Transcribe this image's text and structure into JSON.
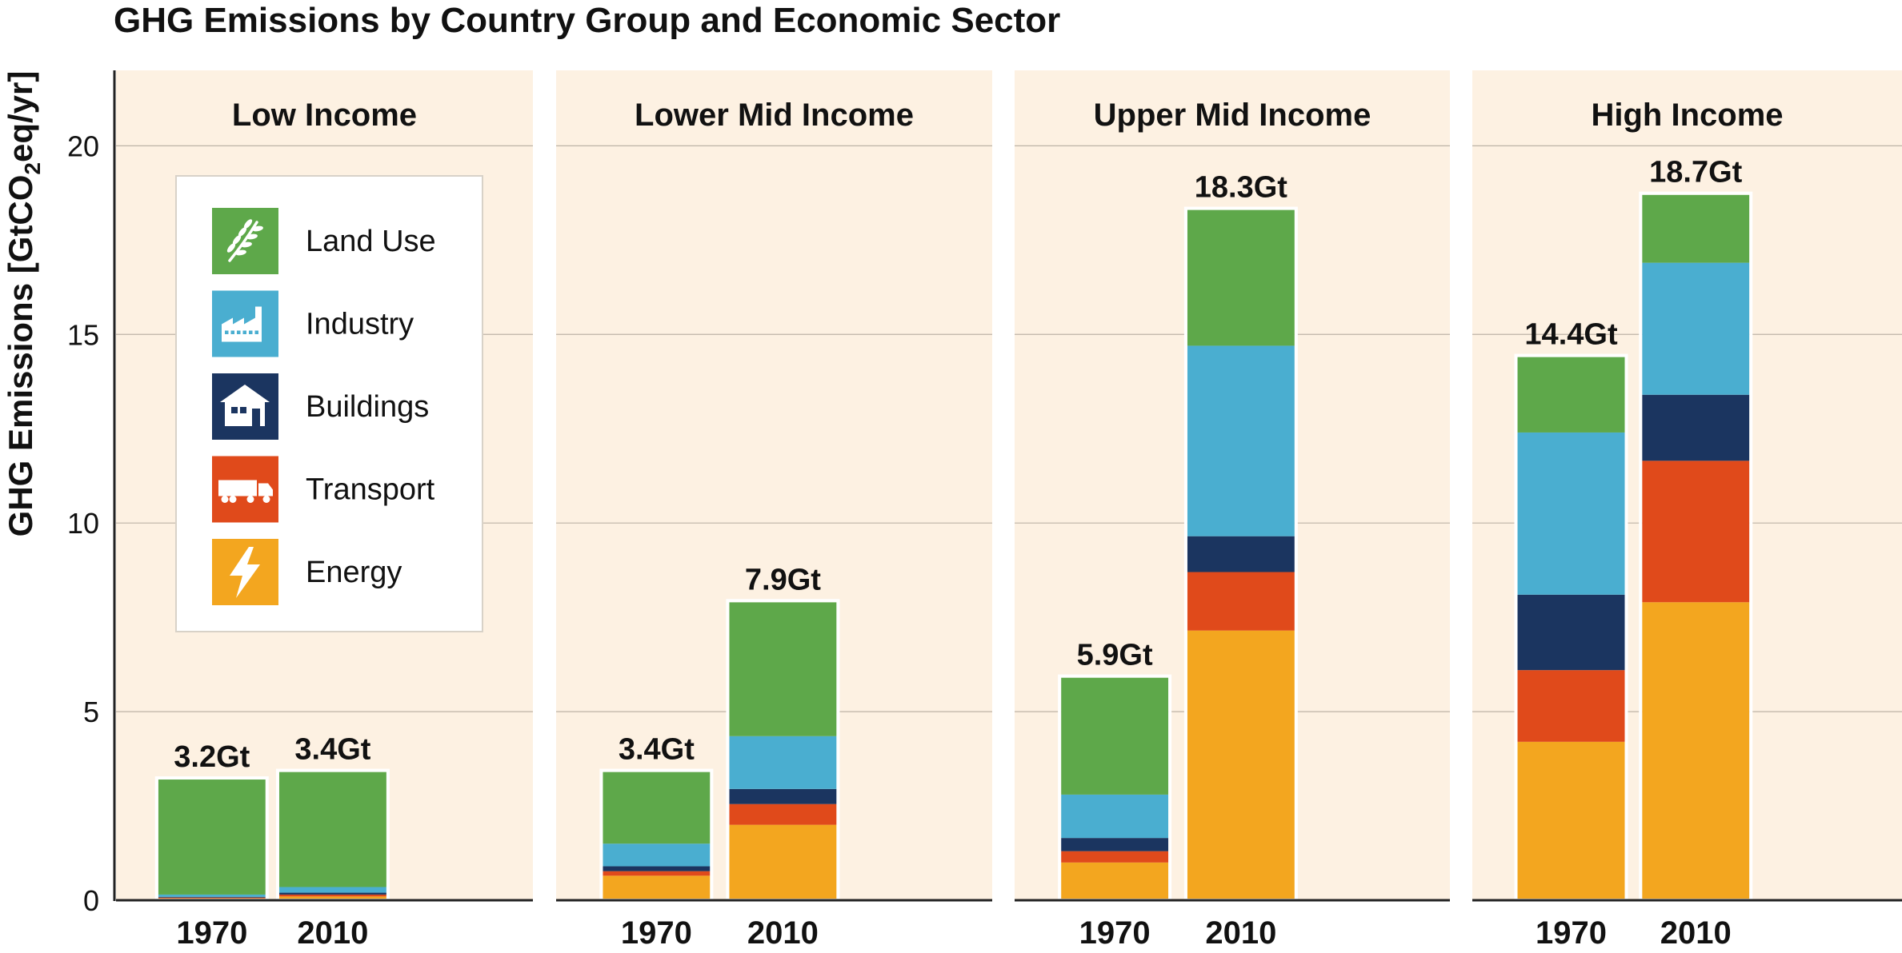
{
  "chart_data": {
    "type": "bar",
    "stacked": true,
    "title": "GHG Emissions by Country Group and Economic Sector",
    "ylabel": "GHG Emissions [GtCO2eq/yr]",
    "ylabel_parts": {
      "before": "GHG Emissions [GtCO",
      "subscript": "2",
      "after": "eq/yr]"
    },
    "ylim": [
      0,
      22
    ],
    "yticks": [
      0,
      5,
      10,
      15,
      20
    ],
    "grid": true,
    "legend_position": "top-left of first panel",
    "sectors": [
      {
        "name": "Land Use",
        "color": "#5ea84a",
        "icon": "wheat-icon"
      },
      {
        "name": "Industry",
        "color": "#4aaed0",
        "icon": "factory-icon"
      },
      {
        "name": "Buildings",
        "color": "#1b3560",
        "icon": "house-icon"
      },
      {
        "name": "Transport",
        "color": "#e04a1b",
        "icon": "truck-icon"
      },
      {
        "name": "Energy",
        "color": "#f3a61f",
        "icon": "lightning-icon"
      }
    ],
    "stack_order": [
      "Energy",
      "Transport",
      "Buildings",
      "Industry",
      "Land Use"
    ],
    "panels": [
      {
        "name": "Low Income",
        "categories": [
          "1970",
          "2010"
        ],
        "totals": [
          "3.2Gt",
          "3.4Gt"
        ],
        "series": [
          {
            "name": "Energy",
            "values": [
              0.05,
              0.1
            ]
          },
          {
            "name": "Transport",
            "values": [
              0.02,
              0.05
            ]
          },
          {
            "name": "Buildings",
            "values": [
              0.02,
              0.05
            ]
          },
          {
            "name": "Industry",
            "values": [
              0.06,
              0.15
            ]
          },
          {
            "name": "Land Use",
            "values": [
              3.05,
              3.05
            ]
          }
        ]
      },
      {
        "name": "Lower Mid Income",
        "categories": [
          "1970",
          "2010"
        ],
        "totals": [
          "3.4Gt",
          "7.9Gt"
        ],
        "series": [
          {
            "name": "Energy",
            "values": [
              0.65,
              2.0
            ]
          },
          {
            "name": "Transport",
            "values": [
              0.12,
              0.55
            ]
          },
          {
            "name": "Buildings",
            "values": [
              0.13,
              0.4
            ]
          },
          {
            "name": "Industry",
            "values": [
              0.6,
              1.4
            ]
          },
          {
            "name": "Land Use",
            "values": [
              1.9,
              3.55
            ]
          }
        ]
      },
      {
        "name": "Upper Mid Income",
        "categories": [
          "1970",
          "2010"
        ],
        "totals": [
          "5.9Gt",
          "18.3Gt"
        ],
        "series": [
          {
            "name": "Energy",
            "values": [
              1.0,
              7.15
            ]
          },
          {
            "name": "Transport",
            "values": [
              0.3,
              1.55
            ]
          },
          {
            "name": "Buildings",
            "values": [
              0.35,
              0.95
            ]
          },
          {
            "name": "Industry",
            "values": [
              1.15,
              5.05
            ]
          },
          {
            "name": "Land Use",
            "values": [
              3.1,
              3.6
            ]
          }
        ]
      },
      {
        "name": "High Income",
        "categories": [
          "1970",
          "2010"
        ],
        "totals": [
          "14.4Gt",
          "18.7Gt"
        ],
        "series": [
          {
            "name": "Energy",
            "values": [
              4.2,
              7.9
            ]
          },
          {
            "name": "Transport",
            "values": [
              1.9,
              3.75
            ]
          },
          {
            "name": "Buildings",
            "values": [
              2.0,
              1.75
            ]
          },
          {
            "name": "Industry",
            "values": [
              4.3,
              3.5
            ]
          },
          {
            "name": "Land Use",
            "values": [
              2.0,
              1.8
            ]
          }
        ]
      }
    ],
    "colors": {
      "panel_background": "#fdf1e2",
      "gridline": "#bdb3a6",
      "axis": "#222222",
      "text": "#111111",
      "bar_outline": "#ffffff"
    }
  }
}
